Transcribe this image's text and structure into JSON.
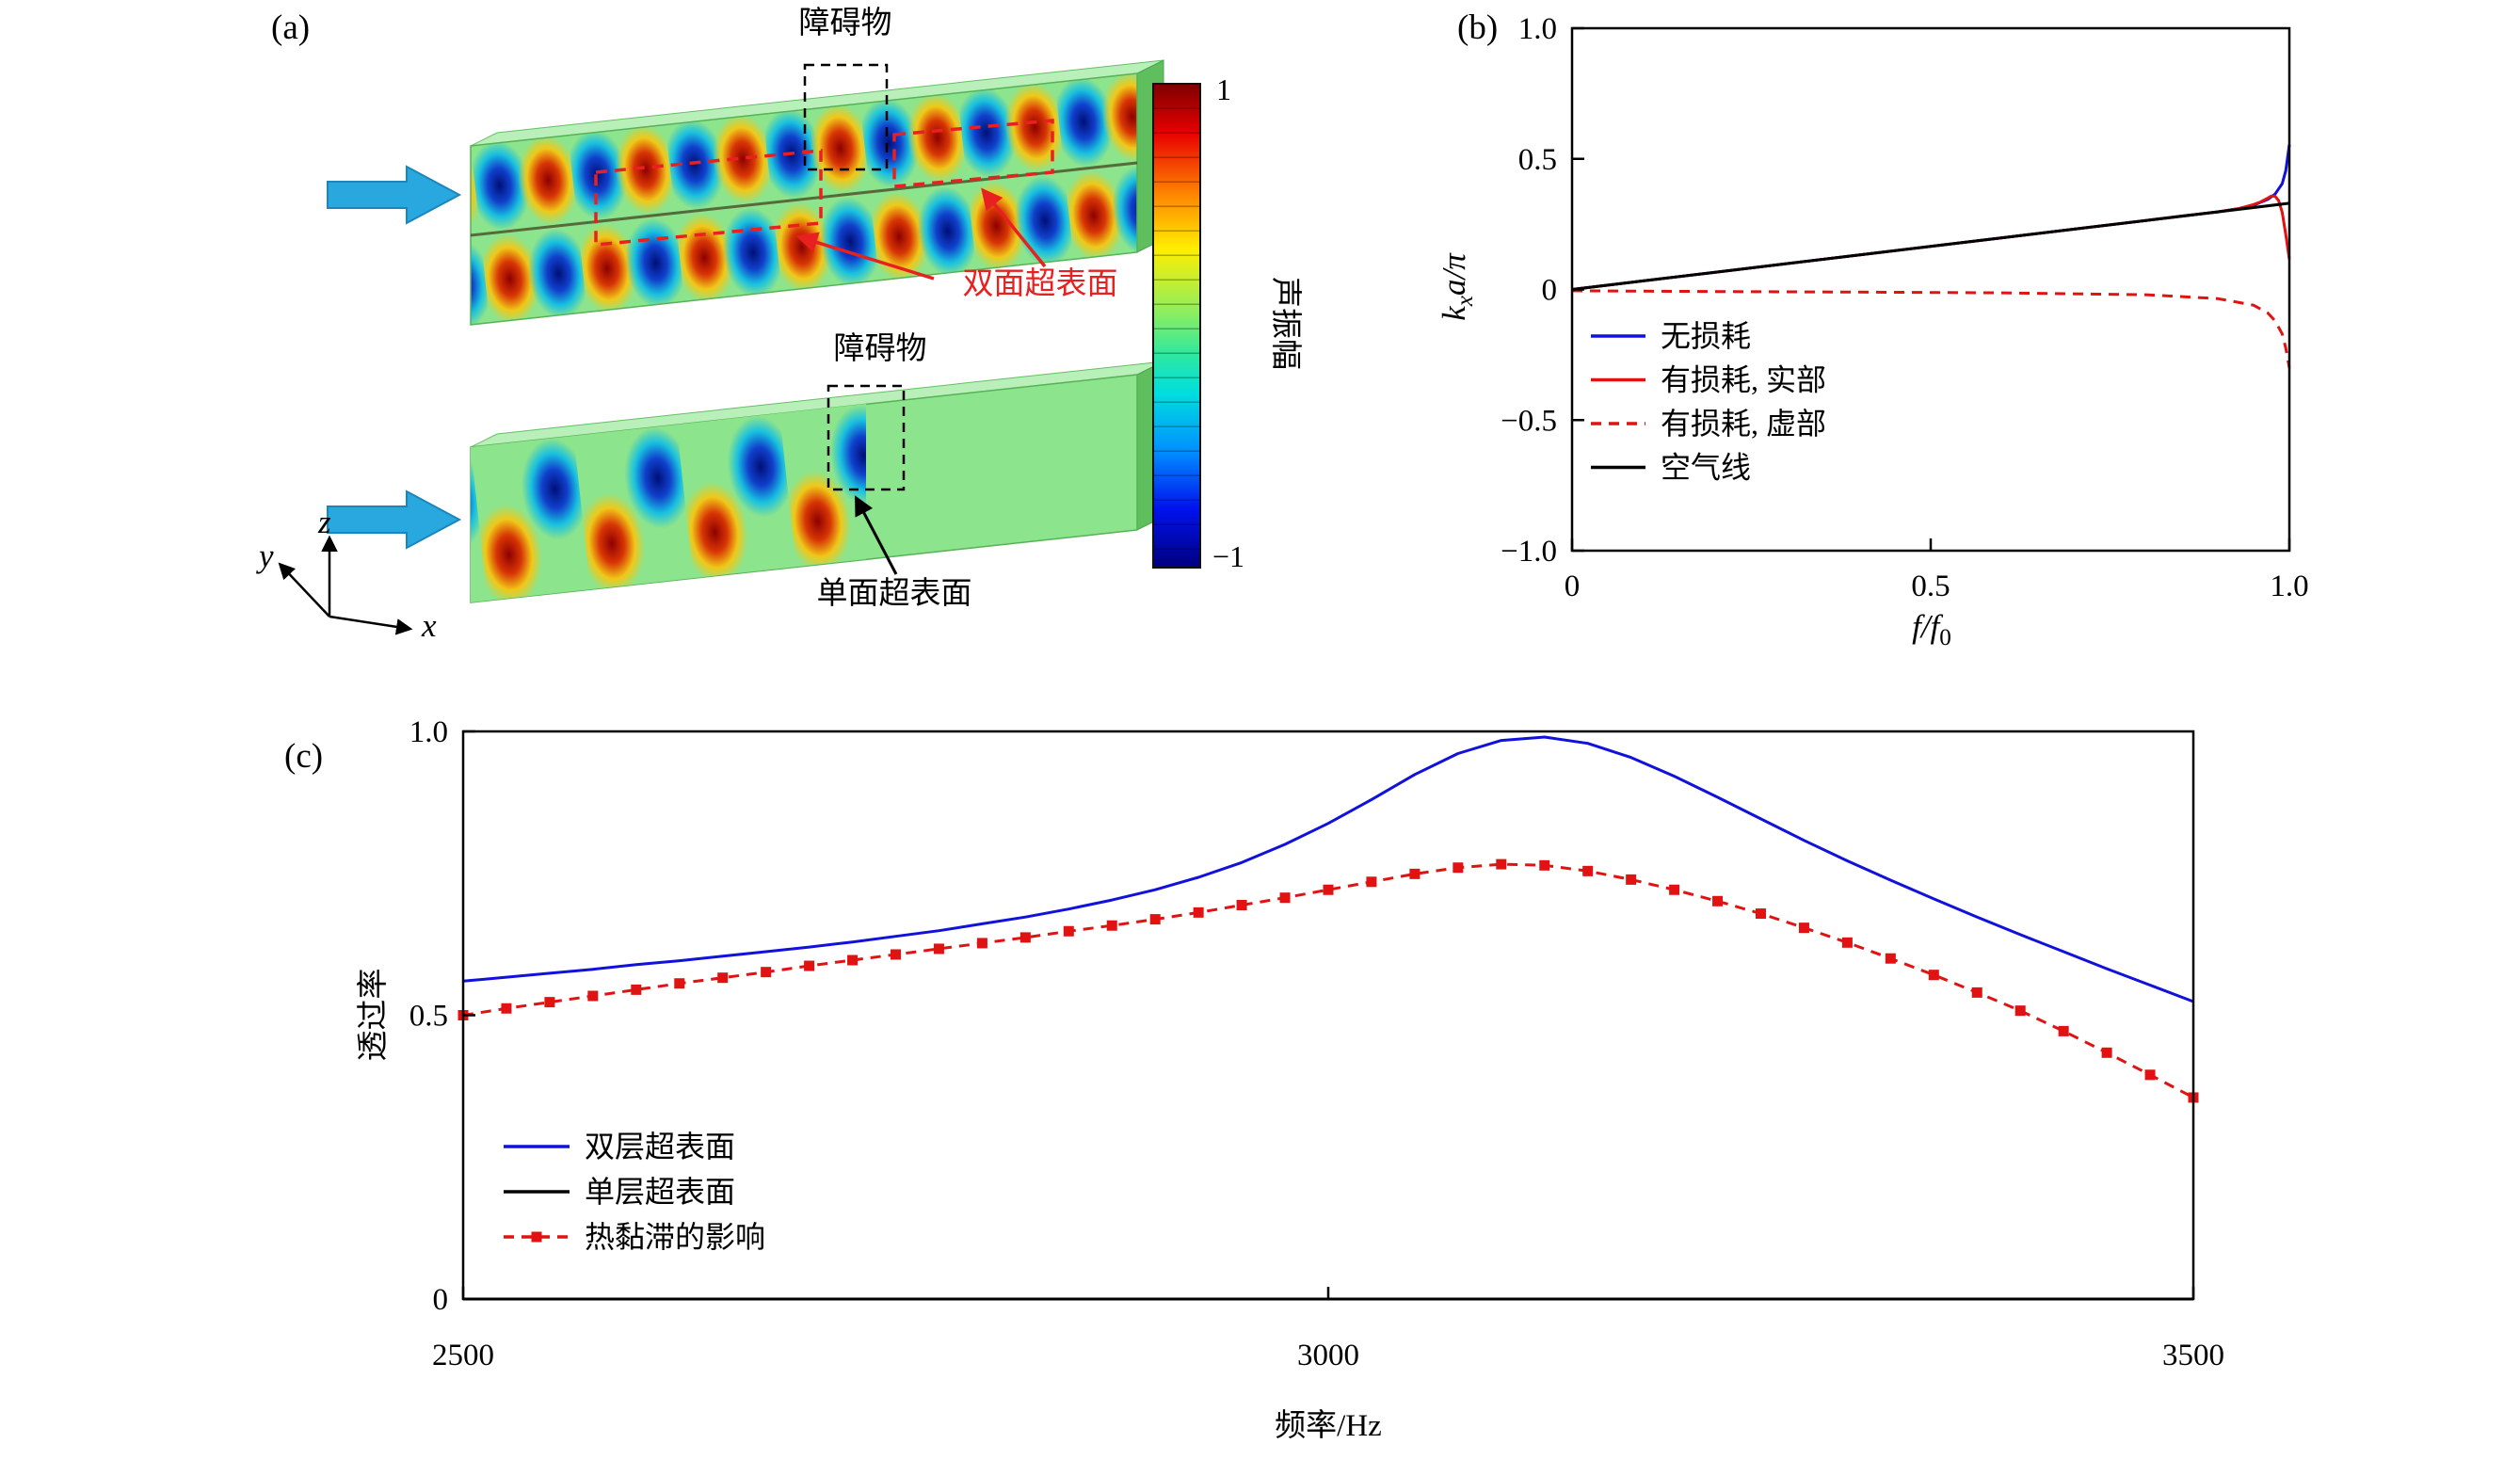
{
  "panels": {
    "a": "(a)",
    "b": "(b)",
    "c": "(c)"
  },
  "panel_a": {
    "obstacle_top": "障碍物",
    "obstacle_bottom": "障碍物",
    "double_surface": "双面超表面",
    "single_surface": "单面超表面",
    "colorbar": {
      "title": "声振幅",
      "max": "1",
      "min": "−1"
    },
    "axes": {
      "x": "x",
      "y": "y",
      "z": "z"
    },
    "field_colors": {
      "background": "#8ce48c",
      "positive": "#d83505",
      "negative": "#1040cc"
    },
    "incident_arrow_color": "#29a8e0",
    "annotation_color": "#e82020"
  },
  "chart_data": [
    {
      "id": "dispersion",
      "type": "line",
      "xlabel": "f/f0",
      "xlabel_parts": [
        "f/f",
        "0"
      ],
      "ylabel": "kxa/π",
      "ylabel_parts": [
        "k",
        "x",
        "a/π"
      ],
      "xlim": [
        0,
        1.0
      ],
      "ylim": [
        -1.0,
        1.0
      ],
      "xticks": [
        {
          "v": 0,
          "l": "0"
        },
        {
          "v": 0.5,
          "l": "0.5"
        },
        {
          "v": 1.0,
          "l": "1.0"
        }
      ],
      "yticks": [
        {
          "v": 1.0,
          "l": "1.0"
        },
        {
          "v": 0.5,
          "l": "0.5"
        },
        {
          "v": 0,
          "l": "0"
        },
        {
          "v": -0.5,
          "l": "−0.5"
        },
        {
          "v": -1.0,
          "l": "−1.0"
        }
      ],
      "grid": false,
      "legend_position": "center-left",
      "series": [
        {
          "name": "无损耗",
          "color": "#1111dd",
          "style": "solid",
          "x": [
            0,
            0.1,
            0.2,
            0.3,
            0.4,
            0.5,
            0.6,
            0.7,
            0.8,
            0.85,
            0.9,
            0.93,
            0.95,
            0.97,
            0.98,
            0.99,
            0.995,
            1.0
          ],
          "y": [
            0,
            0.033,
            0.066,
            0.099,
            0.132,
            0.165,
            0.198,
            0.231,
            0.264,
            0.281,
            0.297,
            0.31,
            0.322,
            0.345,
            0.365,
            0.405,
            0.455,
            0.555
          ]
        },
        {
          "name": "有损耗, 实部",
          "color": "#e01212",
          "style": "solid",
          "x": [
            0,
            0.2,
            0.4,
            0.6,
            0.8,
            0.9,
            0.93,
            0.95,
            0.96,
            0.97,
            0.975,
            0.98,
            0.985,
            0.99,
            0.995,
            1.0
          ],
          "y": [
            0,
            0.066,
            0.132,
            0.198,
            0.264,
            0.297,
            0.31,
            0.325,
            0.335,
            0.35,
            0.358,
            0.357,
            0.34,
            0.295,
            0.21,
            0.115
          ]
        },
        {
          "name": "有损耗, 虚部",
          "color": "#e01212",
          "style": "dashed",
          "x": [
            0,
            0.2,
            0.4,
            0.6,
            0.8,
            0.9,
            0.95,
            0.97,
            0.98,
            0.99,
            0.995,
            1.0
          ],
          "y": [
            -0.005,
            -0.008,
            -0.01,
            -0.013,
            -0.02,
            -0.035,
            -0.06,
            -0.09,
            -0.12,
            -0.17,
            -0.225,
            -0.3
          ]
        },
        {
          "name": "空气线",
          "color": "#000000",
          "style": "solid",
          "x": [
            0,
            1.0
          ],
          "y": [
            0,
            0.33
          ]
        }
      ]
    },
    {
      "id": "transmission",
      "type": "line",
      "xlabel": "频率/Hz",
      "ylabel": "透过率",
      "xlim": [
        2500,
        3500
      ],
      "ylim": [
        0,
        1.0
      ],
      "xticks": [
        {
          "v": 2500,
          "l": "2500"
        },
        {
          "v": 3000,
          "l": "3000"
        },
        {
          "v": 3500,
          "l": "3500"
        }
      ],
      "yticks": [
        {
          "v": 1.0,
          "l": "1.0"
        },
        {
          "v": 0.5,
          "l": "0.5"
        },
        {
          "v": 0,
          "l": "0"
        }
      ],
      "grid": false,
      "legend_position": "lower-left",
      "series": [
        {
          "name": "双层超表面",
          "color": "#1111dd",
          "style": "solid",
          "x": [
            2500,
            2525,
            2550,
            2575,
            2600,
            2625,
            2650,
            2675,
            2700,
            2725,
            2750,
            2775,
            2800,
            2825,
            2850,
            2875,
            2900,
            2925,
            2950,
            2975,
            3000,
            3025,
            3050,
            3075,
            3100,
            3125,
            3150,
            3175,
            3200,
            3225,
            3250,
            3275,
            3300,
            3325,
            3350,
            3375,
            3400,
            3425,
            3450,
            3475,
            3500
          ],
          "y": [
            0.56,
            0.567,
            0.574,
            0.581,
            0.589,
            0.596,
            0.604,
            0.612,
            0.62,
            0.629,
            0.639,
            0.649,
            0.661,
            0.673,
            0.687,
            0.703,
            0.721,
            0.743,
            0.769,
            0.801,
            0.838,
            0.88,
            0.924,
            0.961,
            0.984,
            0.99,
            0.979,
            0.954,
            0.921,
            0.884,
            0.846,
            0.808,
            0.772,
            0.738,
            0.705,
            0.673,
            0.642,
            0.612,
            0.582,
            0.553,
            0.524
          ]
        },
        {
          "name": "单层超表面",
          "color": "#000000",
          "style": "solid",
          "x": [
            2500,
            3500
          ],
          "y": [
            0,
            0
          ]
        },
        {
          "name": "热黏滞的影响",
          "color": "#e01212",
          "style": "dashed",
          "marker": "square",
          "x": [
            2500,
            2525,
            2550,
            2575,
            2600,
            2625,
            2650,
            2675,
            2700,
            2725,
            2750,
            2775,
            2800,
            2825,
            2850,
            2875,
            2900,
            2925,
            2950,
            2975,
            3000,
            3025,
            3050,
            3075,
            3100,
            3125,
            3150,
            3175,
            3200,
            3225,
            3250,
            3275,
            3300,
            3325,
            3350,
            3375,
            3400,
            3425,
            3450,
            3475,
            3500
          ],
          "y": [
            0.5,
            0.512,
            0.523,
            0.534,
            0.545,
            0.556,
            0.566,
            0.576,
            0.587,
            0.597,
            0.607,
            0.617,
            0.627,
            0.637,
            0.648,
            0.658,
            0.669,
            0.681,
            0.694,
            0.707,
            0.721,
            0.735,
            0.749,
            0.76,
            0.766,
            0.764,
            0.754,
            0.739,
            0.721,
            0.701,
            0.679,
            0.654,
            0.628,
            0.6,
            0.571,
            0.54,
            0.508,
            0.472,
            0.434,
            0.395,
            0.355
          ]
        }
      ]
    }
  ]
}
